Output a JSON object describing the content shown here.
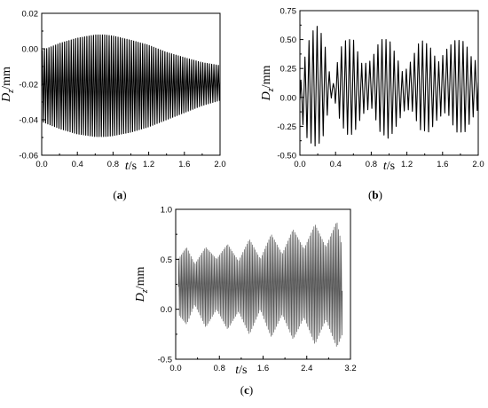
{
  "chart_data": [
    {
      "id": "a",
      "type": "line",
      "caption": "(a)",
      "ylabel_main": "D",
      "ylabel_sub": "z",
      "ylabel_unit": "/mm",
      "xlabel_main": "t",
      "xlabel_unit": "/s",
      "xlim": [
        0,
        2.0
      ],
      "ylim": [
        -0.06,
        0.02
      ],
      "xticks": [
        "0.0",
        "0.4",
        "0.8",
        "1.2",
        "1.6",
        "2.0"
      ],
      "yticks": [
        "-0.06",
        "-0.04",
        "-0.02",
        "0.00",
        "0.02"
      ],
      "series": [
        {
          "color": "#000000",
          "oscillation_frequency_hz": 40,
          "envelope_t": [
            0.0,
            0.2,
            0.4,
            0.6,
            0.7,
            0.8,
            1.0,
            1.2,
            1.4,
            1.6,
            1.8,
            2.0
          ],
          "envelope_max": [
            -0.001,
            0.003,
            0.006,
            0.0078,
            0.0078,
            0.0072,
            0.0048,
            0.002,
            -0.002,
            -0.005,
            -0.0078,
            -0.0095
          ],
          "envelope_min": [
            -0.041,
            -0.045,
            -0.048,
            -0.0495,
            -0.0495,
            -0.049,
            -0.047,
            -0.044,
            -0.04,
            -0.036,
            -0.032,
            -0.029
          ]
        }
      ]
    },
    {
      "id": "b",
      "type": "line",
      "caption": "(b)",
      "ylabel_main": "D",
      "ylabel_sub": "z",
      "ylabel_unit": "/mm",
      "xlabel_main": "t",
      "xlabel_unit": "/s",
      "xlim": [
        0,
        2.0
      ],
      "ylim": [
        -0.5,
        0.75
      ],
      "xticks": [
        "0.0",
        "0.4",
        "0.8",
        "1.2",
        "1.6",
        "2.0"
      ],
      "yticks": [
        "-0.50",
        "-0.25",
        "0.00",
        "0.25",
        "0.50",
        "0.75"
      ],
      "series": [
        {
          "color": "#000000",
          "oscillation_frequency_hz": 22,
          "envelope_t": [
            0.0,
            0.08,
            0.15,
            0.2,
            0.27,
            0.33,
            0.37,
            0.45,
            0.52,
            0.6,
            0.7,
            0.8,
            0.9,
            1.0,
            1.08,
            1.16,
            1.25,
            1.35,
            1.45,
            1.55,
            1.65,
            1.75,
            1.85,
            1.95,
            2.0
          ],
          "envelope_max": [
            0.1,
            0.45,
            0.58,
            0.62,
            0.5,
            0.22,
            0.1,
            0.42,
            0.5,
            0.5,
            0.28,
            0.32,
            0.5,
            0.5,
            0.36,
            0.2,
            0.32,
            0.5,
            0.45,
            0.3,
            0.42,
            0.5,
            0.48,
            0.3,
            0.36
          ],
          "envelope_min": [
            -0.15,
            -0.35,
            -0.42,
            -0.42,
            -0.32,
            -0.05,
            0.03,
            -0.2,
            -0.32,
            -0.32,
            -0.15,
            -0.08,
            -0.3,
            -0.36,
            -0.25,
            -0.12,
            -0.1,
            -0.28,
            -0.3,
            -0.18,
            -0.12,
            -0.3,
            -0.3,
            -0.16,
            -0.1
          ]
        }
      ]
    },
    {
      "id": "c",
      "type": "line",
      "caption": "(c)",
      "ylabel_main": "D",
      "ylabel_sub": "z",
      "ylabel_unit": "/mm",
      "xlabel_main": "t",
      "xlabel_unit": "/s",
      "xlim": [
        0,
        3.2
      ],
      "ylim": [
        -0.5,
        1.0
      ],
      "xticks": [
        "0.0",
        "0.8",
        "1.6",
        "2.4",
        "3.2"
      ],
      "yticks": [
        "-0.5",
        "0.0",
        "0.5",
        "1.0"
      ],
      "series": [
        {
          "color": "#555555",
          "oscillation_frequency_hz": 40,
          "envelope_t": [
            0.05,
            0.2,
            0.35,
            0.55,
            0.75,
            0.95,
            1.15,
            1.35,
            1.55,
            1.75,
            1.95,
            2.15,
            2.35,
            2.55,
            2.75,
            2.95,
            3.05
          ],
          "envelope_max": [
            0.5,
            0.62,
            0.45,
            0.62,
            0.5,
            0.65,
            0.48,
            0.7,
            0.5,
            0.75,
            0.55,
            0.8,
            0.6,
            0.85,
            0.62,
            0.88,
            0.62
          ],
          "envelope_min": [
            -0.05,
            -0.15,
            0.05,
            -0.18,
            0.0,
            -0.2,
            -0.02,
            -0.25,
            0.0,
            -0.28,
            -0.05,
            -0.3,
            -0.08,
            -0.35,
            -0.1,
            -0.38,
            -0.25
          ]
        }
      ]
    }
  ]
}
